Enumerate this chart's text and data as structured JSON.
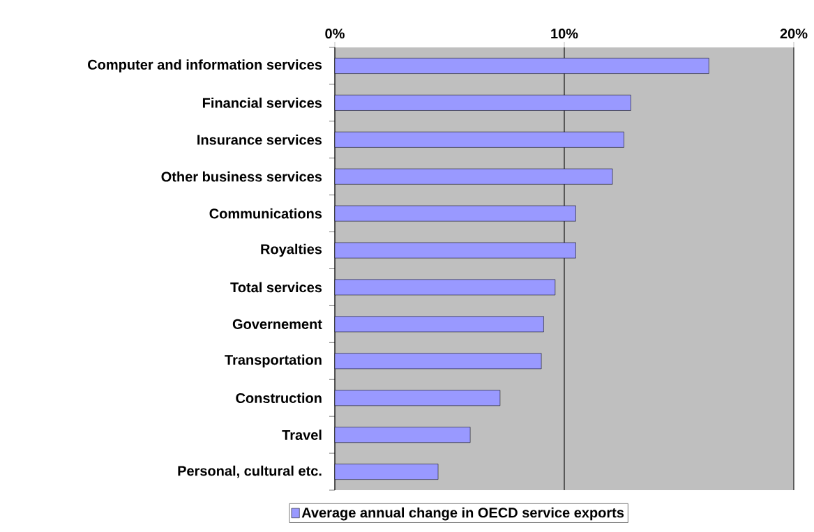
{
  "chart_data": {
    "type": "bar",
    "orientation": "horizontal",
    "categories": [
      "Computer and information services",
      "Financial services",
      "Insurance services",
      "Other business services",
      "Communications",
      "Royalties",
      "Total services",
      "Governement",
      "Transportation",
      "Construction",
      "Travel",
      "Personal, cultural etc."
    ],
    "series": [
      {
        "name": "Average annual change in OECD service exports",
        "color": "#9999ff",
        "values": [
          16.3,
          12.9,
          12.6,
          12.1,
          10.5,
          10.5,
          9.6,
          9.1,
          9.0,
          7.2,
          5.9,
          4.5
        ]
      }
    ],
    "xlim": [
      0,
      20
    ],
    "xticks": [
      {
        "value": 0,
        "label": "0%"
      },
      {
        "value": 10,
        "label": "10%"
      },
      {
        "value": 20,
        "label": "20%"
      }
    ],
    "grid": "x",
    "legend": "bottom"
  }
}
